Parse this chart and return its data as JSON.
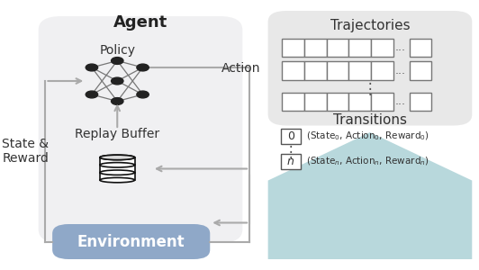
{
  "bg_color": "#ffffff",
  "agent_label": {
    "text": "Agent",
    "fontsize": 13
  },
  "policy_label": {
    "text": "Policy",
    "fontsize": 10
  },
  "replay_label": {
    "text": "Replay Buffer",
    "fontsize": 10
  },
  "action_label": {
    "text": "Action",
    "fontsize": 10
  },
  "state_label": {
    "text": "State &\nReward",
    "fontsize": 10
  },
  "env_label": {
    "text": "Environment",
    "fontsize": 12
  },
  "traj_title": {
    "text": "Trajectories",
    "fontsize": 11
  },
  "trans_title": {
    "text": "Transitions",
    "fontsize": 11
  },
  "agent_box_color": "#f0f0f2",
  "traj_bg_color": "#e8e8e8",
  "trans_bg_color": "#b8d8dc",
  "env_box_color": "#8fa8c8",
  "arrow_color": "#aaaaaa",
  "nn_node_color": "#222222",
  "nn_line_color": "#777777",
  "db_color": "#111111",
  "cell_edge_color": "#777777",
  "trans_box_edge_color": "#555555"
}
